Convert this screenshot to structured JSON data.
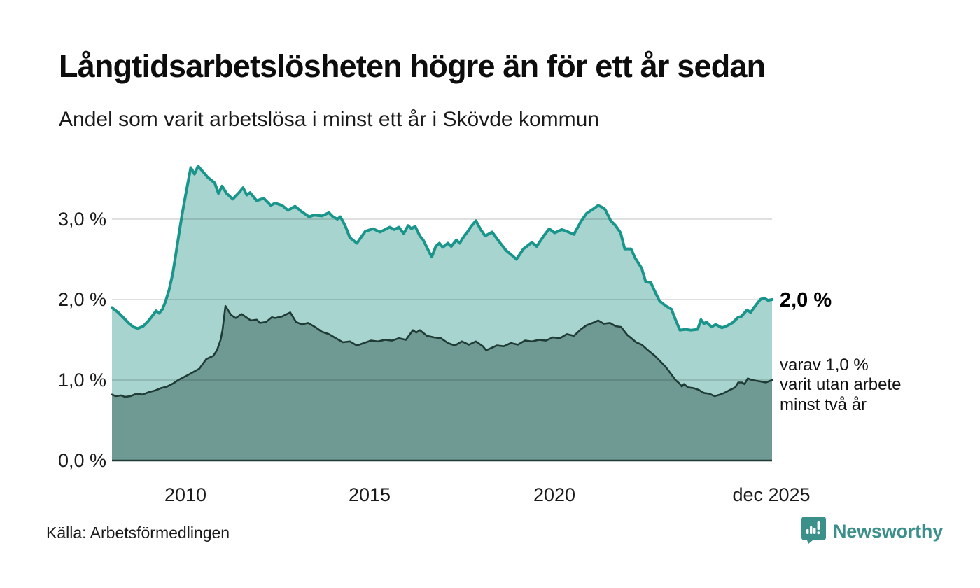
{
  "chart_data": {
    "type": "area",
    "title": "Långtidsarbetslösheten högre än för ett år sedan",
    "subtitle": "Andel som varit arbetslösa i minst ett år i Skövde kommun",
    "source": "Källa: Arbetsförmedlingen",
    "grid": "horizontal",
    "grid_color": "rgba(0,0,0,0.12)",
    "axis_line_color": "#1e3b36",
    "x_axis": {
      "range": [
        2008.0,
        2025.92
      ],
      "ticks": [
        {
          "label": "2010",
          "year": 2010
        },
        {
          "label": "2015",
          "year": 2015
        },
        {
          "label": "2020",
          "year": 2020
        },
        {
          "label": "dec 2025",
          "year": 2025.92
        }
      ]
    },
    "y_axis": {
      "unit": "%",
      "range": [
        0,
        3.9
      ],
      "ticks": [
        {
          "label": "3,0 %",
          "value": 3.0
        },
        {
          "label": "2,0 %",
          "value": 2.0
        },
        {
          "label": "1,0 %",
          "value": 1.0
        },
        {
          "label": "0,0 %",
          "value": 0.0
        }
      ]
    },
    "series": [
      {
        "name": "Andel arbetslösa minst ett år",
        "line_color": "#1a958b",
        "fill_color": "#a7d4ce",
        "end_value": 2.0,
        "points": [
          [
            2008.0,
            1.9
          ],
          [
            2008.08,
            1.87
          ],
          [
            2008.17,
            1.84
          ],
          [
            2008.3,
            1.78
          ],
          [
            2008.45,
            1.71
          ],
          [
            2008.58,
            1.66
          ],
          [
            2008.7,
            1.64
          ],
          [
            2008.85,
            1.67
          ],
          [
            2009.0,
            1.74
          ],
          [
            2009.1,
            1.8
          ],
          [
            2009.2,
            1.86
          ],
          [
            2009.28,
            1.83
          ],
          [
            2009.37,
            1.88
          ],
          [
            2009.45,
            1.97
          ],
          [
            2009.55,
            2.12
          ],
          [
            2009.65,
            2.32
          ],
          [
            2009.73,
            2.55
          ],
          [
            2009.82,
            2.82
          ],
          [
            2009.9,
            3.05
          ],
          [
            2010.0,
            3.3
          ],
          [
            2010.07,
            3.47
          ],
          [
            2010.14,
            3.64
          ],
          [
            2010.24,
            3.56
          ],
          [
            2010.34,
            3.66
          ],
          [
            2010.45,
            3.6
          ],
          [
            2010.6,
            3.52
          ],
          [
            2010.79,
            3.45
          ],
          [
            2010.89,
            3.32
          ],
          [
            2010.99,
            3.41
          ],
          [
            2011.11,
            3.32
          ],
          [
            2011.28,
            3.25
          ],
          [
            2011.45,
            3.33
          ],
          [
            2011.56,
            3.39
          ],
          [
            2011.66,
            3.3
          ],
          [
            2011.75,
            3.33
          ],
          [
            2011.93,
            3.23
          ],
          [
            2012.12,
            3.26
          ],
          [
            2012.31,
            3.17
          ],
          [
            2012.43,
            3.2
          ],
          [
            2012.62,
            3.17
          ],
          [
            2012.78,
            3.11
          ],
          [
            2012.97,
            3.16
          ],
          [
            2013.13,
            3.1
          ],
          [
            2013.35,
            3.03
          ],
          [
            2013.48,
            3.05
          ],
          [
            2013.7,
            3.04
          ],
          [
            2013.89,
            3.08
          ],
          [
            2014.0,
            3.03
          ],
          [
            2014.12,
            3.0
          ],
          [
            2014.2,
            3.03
          ],
          [
            2014.33,
            2.92
          ],
          [
            2014.46,
            2.77
          ],
          [
            2014.65,
            2.7
          ],
          [
            2014.88,
            2.85
          ],
          [
            2015.09,
            2.88
          ],
          [
            2015.28,
            2.84
          ],
          [
            2015.54,
            2.9
          ],
          [
            2015.66,
            2.87
          ],
          [
            2015.79,
            2.9
          ],
          [
            2015.92,
            2.82
          ],
          [
            2016.04,
            2.92
          ],
          [
            2016.13,
            2.88
          ],
          [
            2016.23,
            2.91
          ],
          [
            2016.36,
            2.79
          ],
          [
            2016.45,
            2.74
          ],
          [
            2016.58,
            2.62
          ],
          [
            2016.68,
            2.53
          ],
          [
            2016.79,
            2.66
          ],
          [
            2016.89,
            2.7
          ],
          [
            2016.98,
            2.65
          ],
          [
            2017.12,
            2.7
          ],
          [
            2017.21,
            2.66
          ],
          [
            2017.35,
            2.74
          ],
          [
            2017.44,
            2.7
          ],
          [
            2017.56,
            2.79
          ],
          [
            2017.65,
            2.84
          ],
          [
            2017.75,
            2.91
          ],
          [
            2017.88,
            2.98
          ],
          [
            2018.01,
            2.87
          ],
          [
            2018.13,
            2.79
          ],
          [
            2018.32,
            2.84
          ],
          [
            2018.51,
            2.72
          ],
          [
            2018.7,
            2.61
          ],
          [
            2018.86,
            2.55
          ],
          [
            2018.98,
            2.5
          ],
          [
            2019.17,
            2.63
          ],
          [
            2019.4,
            2.71
          ],
          [
            2019.53,
            2.66
          ],
          [
            2019.72,
            2.79
          ],
          [
            2019.87,
            2.88
          ],
          [
            2020.02,
            2.83
          ],
          [
            2020.21,
            2.87
          ],
          [
            2020.34,
            2.85
          ],
          [
            2020.54,
            2.81
          ],
          [
            2020.73,
            2.97
          ],
          [
            2020.88,
            3.07
          ],
          [
            2021.01,
            3.11
          ],
          [
            2021.11,
            3.14
          ],
          [
            2021.2,
            3.17
          ],
          [
            2021.3,
            3.15
          ],
          [
            2021.39,
            3.12
          ],
          [
            2021.54,
            2.98
          ],
          [
            2021.67,
            2.92
          ],
          [
            2021.81,
            2.83
          ],
          [
            2021.92,
            2.63
          ],
          [
            2022.09,
            2.63
          ],
          [
            2022.21,
            2.51
          ],
          [
            2022.38,
            2.39
          ],
          [
            2022.49,
            2.22
          ],
          [
            2022.63,
            2.21
          ],
          [
            2022.76,
            2.08
          ],
          [
            2022.87,
            1.98
          ],
          [
            2023.04,
            1.92
          ],
          [
            2023.19,
            1.88
          ],
          [
            2023.29,
            1.76
          ],
          [
            2023.42,
            1.62
          ],
          [
            2023.57,
            1.63
          ],
          [
            2023.72,
            1.62
          ],
          [
            2023.9,
            1.63
          ],
          [
            2023.99,
            1.75
          ],
          [
            2024.07,
            1.7
          ],
          [
            2024.14,
            1.72
          ],
          [
            2024.28,
            1.66
          ],
          [
            2024.39,
            1.69
          ],
          [
            2024.56,
            1.65
          ],
          [
            2024.68,
            1.67
          ],
          [
            2024.84,
            1.71
          ],
          [
            2025.0,
            1.78
          ],
          [
            2025.09,
            1.79
          ],
          [
            2025.24,
            1.87
          ],
          [
            2025.34,
            1.84
          ],
          [
            2025.43,
            1.9
          ],
          [
            2025.6,
            2.0
          ],
          [
            2025.7,
            2.02
          ],
          [
            2025.81,
            1.99
          ],
          [
            2025.92,
            2.0
          ]
        ]
      },
      {
        "name": "Andel arbetslösa minst två år",
        "line_color": "#1e3b36",
        "fill_color": "#6f9a94",
        "end_value": 1.0,
        "points": [
          [
            2008.0,
            0.82
          ],
          [
            2008.1,
            0.8
          ],
          [
            2008.25,
            0.81
          ],
          [
            2008.35,
            0.79
          ],
          [
            2008.5,
            0.8
          ],
          [
            2008.67,
            0.83
          ],
          [
            2008.83,
            0.82
          ],
          [
            2009.0,
            0.85
          ],
          [
            2009.17,
            0.87
          ],
          [
            2009.33,
            0.9
          ],
          [
            2009.5,
            0.92
          ],
          [
            2009.67,
            0.96
          ],
          [
            2009.8,
            1.0
          ],
          [
            2010.09,
            1.07
          ],
          [
            2010.37,
            1.14
          ],
          [
            2010.56,
            1.26
          ],
          [
            2010.75,
            1.3
          ],
          [
            2010.85,
            1.37
          ],
          [
            2010.95,
            1.5
          ],
          [
            2011.0,
            1.62
          ],
          [
            2011.08,
            1.92
          ],
          [
            2011.23,
            1.81
          ],
          [
            2011.36,
            1.77
          ],
          [
            2011.52,
            1.82
          ],
          [
            2011.61,
            1.79
          ],
          [
            2011.77,
            1.74
          ],
          [
            2011.93,
            1.75
          ],
          [
            2012.02,
            1.71
          ],
          [
            2012.18,
            1.72
          ],
          [
            2012.34,
            1.78
          ],
          [
            2012.43,
            1.77
          ],
          [
            2012.62,
            1.79
          ],
          [
            2012.84,
            1.84
          ],
          [
            2013.0,
            1.72
          ],
          [
            2013.16,
            1.69
          ],
          [
            2013.32,
            1.71
          ],
          [
            2013.51,
            1.66
          ],
          [
            2013.7,
            1.6
          ],
          [
            2013.89,
            1.57
          ],
          [
            2014.08,
            1.52
          ],
          [
            2014.27,
            1.47
          ],
          [
            2014.46,
            1.48
          ],
          [
            2014.65,
            1.43
          ],
          [
            2014.84,
            1.46
          ],
          [
            2015.03,
            1.49
          ],
          [
            2015.22,
            1.48
          ],
          [
            2015.41,
            1.5
          ],
          [
            2015.6,
            1.49
          ],
          [
            2015.79,
            1.52
          ],
          [
            2015.98,
            1.5
          ],
          [
            2016.17,
            1.62
          ],
          [
            2016.26,
            1.59
          ],
          [
            2016.36,
            1.62
          ],
          [
            2016.55,
            1.55
          ],
          [
            2016.74,
            1.53
          ],
          [
            2016.93,
            1.52
          ],
          [
            2017.12,
            1.46
          ],
          [
            2017.31,
            1.43
          ],
          [
            2017.5,
            1.48
          ],
          [
            2017.69,
            1.44
          ],
          [
            2017.88,
            1.48
          ],
          [
            2018.07,
            1.42
          ],
          [
            2018.16,
            1.37
          ],
          [
            2018.26,
            1.39
          ],
          [
            2018.45,
            1.43
          ],
          [
            2018.64,
            1.42
          ],
          [
            2018.83,
            1.46
          ],
          [
            2019.02,
            1.44
          ],
          [
            2019.21,
            1.49
          ],
          [
            2019.4,
            1.48
          ],
          [
            2019.59,
            1.5
          ],
          [
            2019.78,
            1.49
          ],
          [
            2019.97,
            1.53
          ],
          [
            2020.16,
            1.52
          ],
          [
            2020.35,
            1.57
          ],
          [
            2020.54,
            1.55
          ],
          [
            2020.73,
            1.63
          ],
          [
            2020.88,
            1.68
          ],
          [
            2021.05,
            1.71
          ],
          [
            2021.2,
            1.74
          ],
          [
            2021.35,
            1.7
          ],
          [
            2021.52,
            1.71
          ],
          [
            2021.67,
            1.67
          ],
          [
            2021.82,
            1.66
          ],
          [
            2021.99,
            1.56
          ],
          [
            2022.1,
            1.52
          ],
          [
            2022.23,
            1.47
          ],
          [
            2022.38,
            1.44
          ],
          [
            2022.55,
            1.37
          ],
          [
            2022.74,
            1.3
          ],
          [
            2022.89,
            1.23
          ],
          [
            2023.04,
            1.16
          ],
          [
            2023.17,
            1.08
          ],
          [
            2023.3,
            1.0
          ],
          [
            2023.4,
            0.96
          ],
          [
            2023.47,
            0.92
          ],
          [
            2023.53,
            0.95
          ],
          [
            2023.64,
            0.91
          ],
          [
            2023.79,
            0.9
          ],
          [
            2023.92,
            0.88
          ],
          [
            2024.07,
            0.84
          ],
          [
            2024.22,
            0.83
          ],
          [
            2024.36,
            0.8
          ],
          [
            2024.51,
            0.82
          ],
          [
            2024.62,
            0.84
          ],
          [
            2024.79,
            0.88
          ],
          [
            2024.92,
            0.91
          ],
          [
            2025.0,
            0.97
          ],
          [
            2025.11,
            0.97
          ],
          [
            2025.17,
            0.95
          ],
          [
            2025.26,
            1.02
          ],
          [
            2025.38,
            1.0
          ],
          [
            2025.51,
            0.99
          ],
          [
            2025.64,
            0.98
          ],
          [
            2025.75,
            0.97
          ],
          [
            2025.92,
            1.0
          ]
        ]
      }
    ]
  },
  "annotations": {
    "end_value_label": "2,0 %",
    "secondary_label": "varav 1,0 %\nvarit utan arbete\nminst två år"
  },
  "footer": {
    "source": "Källa: Arbetsförmedlingen",
    "brand": "Newsworthy",
    "brand_color": "#3b918a"
  }
}
